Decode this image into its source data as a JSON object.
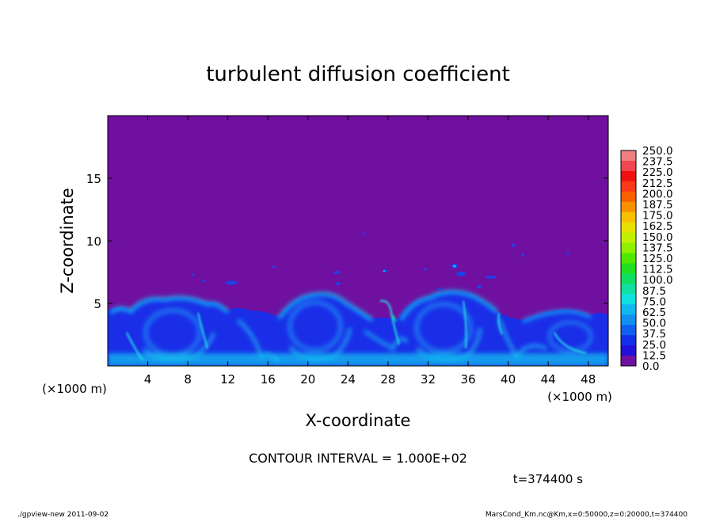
{
  "chart_data": {
    "type": "heatmap",
    "title": "turbulent diffusion coefficient",
    "xlabel": "X-coordinate",
    "ylabel": "Z-coordinate",
    "x_unit_left": "(×1000 m)",
    "x_unit_right": "(×1000 m)",
    "xlim": [
      0,
      50
    ],
    "ylim": [
      0,
      20
    ],
    "xticks": [
      4,
      8,
      12,
      16,
      20,
      24,
      28,
      32,
      36,
      40,
      44,
      48
    ],
    "yticks": [
      5,
      10,
      15
    ],
    "colorbar": {
      "levels": [
        "250.0",
        "237.5",
        "225.0",
        "212.5",
        "200.0",
        "187.5",
        "175.0",
        "162.5",
        "150.0",
        "137.5",
        "125.0",
        "112.5",
        "100.0",
        "87.5",
        "75.0",
        "62.5",
        "50.0",
        "37.5",
        "25.0",
        "12.5",
        "0.0"
      ],
      "colors": [
        "#f08080",
        "#f04850",
        "#f01010",
        "#f83818",
        "#f86000",
        "#f89000",
        "#f8c000",
        "#e8e000",
        "#c0f000",
        "#90f000",
        "#50e800",
        "#20e020",
        "#10e060",
        "#10e0a0",
        "#10e0e0",
        "#10b8f0",
        "#1090f0",
        "#1060f0",
        "#1030e8",
        "#2010d8",
        "#7010a0"
      ]
    },
    "contour_interval": "CONTOUR INTERVAL = 1.000E+02",
    "time_label": "t=374400 s"
  },
  "footer": {
    "left": "./gpview-new  2011-09-02",
    "right": "MarsCond_Km.nc@Km,x=0:50000,z=0:20000,t=374400"
  }
}
